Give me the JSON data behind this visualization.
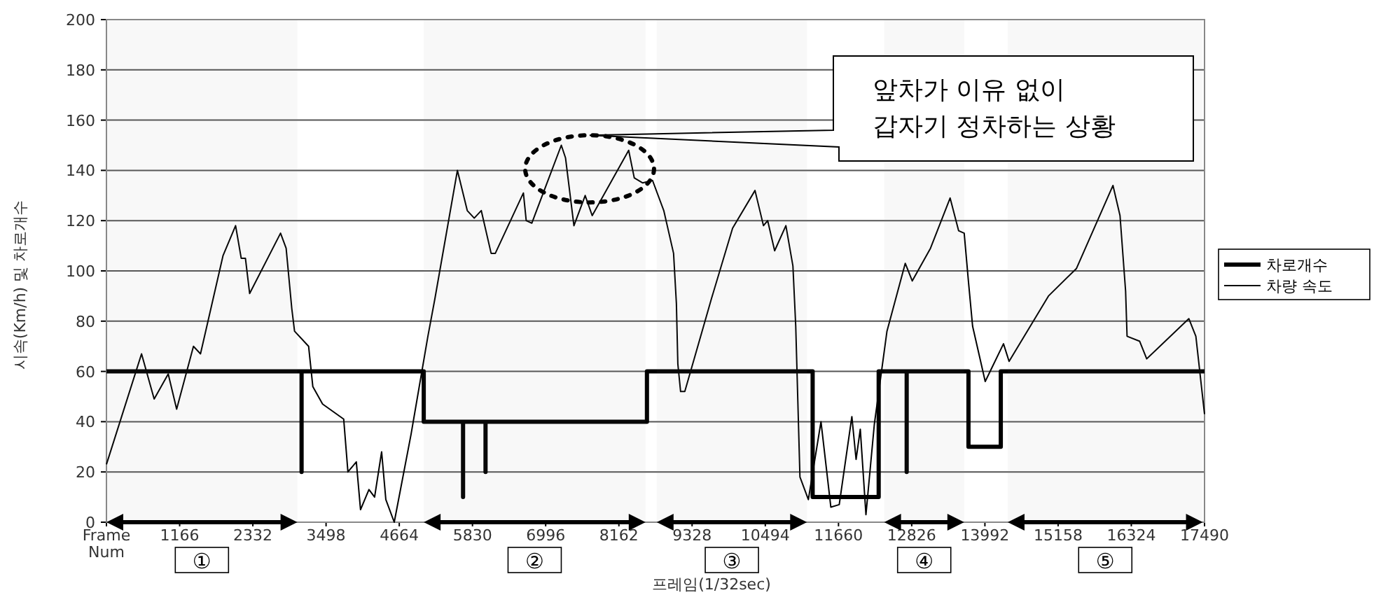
{
  "chart_data": {
    "type": "line",
    "xlabel": "프레임(1/32sec)",
    "ylabel": "시속(Km/h) 및 차로개수",
    "xlim": [
      0,
      17490
    ],
    "xticks": [
      {
        "value": 0,
        "label": "Frame Num"
      },
      1166,
      2332,
      3498,
      4664,
      5830,
      6996,
      8162,
      9328,
      10494,
      11660,
      12826,
      13992,
      15158,
      16324,
      17490
    ],
    "ylim": [
      0,
      200
    ],
    "yticks": [
      0,
      20,
      40,
      60,
      80,
      100,
      120,
      140,
      160,
      180,
      200
    ],
    "grid": "y",
    "legend": "right",
    "series": [
      {
        "name": "차로개수",
        "color": "#000000",
        "x": [
          0,
          3108,
          3108,
          3108,
          5054,
          5054,
          5680,
          5680,
          5680,
          6038,
          6038,
          6038,
          8609,
          8609,
          11248,
          11248,
          12300,
          12300,
          12746,
          12746,
          12746,
          13730,
          13730,
          14245,
          14245,
          17490
        ],
        "values": [
          60,
          60,
          20,
          60,
          60,
          40,
          40,
          10,
          40,
          40,
          20,
          40,
          40,
          60,
          60,
          10,
          10,
          60,
          60,
          20,
          60,
          60,
          30,
          30,
          60,
          60
        ]
      },
      {
        "name": "차량 속도",
        "color": "#000000",
        "x": [
          0,
          559,
          760,
          984,
          1118,
          1386,
          1498,
          1856,
          2057,
          2147,
          2214,
          2281,
          2773,
          2862,
          2952,
          2996,
          3220,
          3287,
          3443,
          3779,
          3846,
          3980,
          4047,
          4181,
          4271,
          4383,
          4450,
          4584,
          4852,
          5120,
          5232,
          5590,
          5747,
          5858,
          5970,
          6127,
          6194,
          6641,
          6686,
          6775,
          7245,
          7312,
          7446,
          7625,
          7737,
          8318,
          8407,
          8542,
          8698,
          8877,
          9033,
          9078,
          9101,
          9145,
          9212,
          9637,
          9973,
          10330,
          10465,
          10532,
          10643,
          10822,
          10934,
          10979,
          11046,
          11180,
          11381,
          11538,
          11672,
          11873,
          11940,
          12007,
          12097,
          12231,
          12432,
          12723,
          12835,
          13125,
          13438,
          13573,
          13662,
          13729,
          13796,
          13997,
          14288,
          14377,
          15004,
          15451,
          16032,
          16144,
          16233,
          16256,
          16457,
          16569,
          17240,
          17352,
          17490
        ],
        "values": [
          23,
          67,
          49,
          59,
          45,
          70,
          67,
          106,
          118,
          105,
          105,
          91,
          115,
          109,
          85,
          76,
          70,
          54,
          47,
          41,
          20,
          24,
          5,
          13,
          10,
          28,
          9,
          0,
          35,
          74,
          89,
          140,
          124,
          121,
          124,
          107,
          107,
          131,
          120,
          119,
          150,
          145,
          118,
          130,
          122,
          148,
          137,
          135,
          136,
          124,
          107,
          87,
          63,
          52,
          52,
          89,
          117,
          132,
          118,
          120,
          108,
          118,
          102,
          78,
          18,
          9,
          40,
          6,
          7,
          42,
          25,
          37,
          3,
          39,
          76,
          103,
          96,
          109,
          129,
          116,
          115,
          96,
          78,
          56,
          71,
          64,
          90,
          101,
          134,
          122,
          92,
          74,
          72,
          65,
          81,
          74,
          43
        ]
      }
    ],
    "bands": [
      {
        "axis": "x",
        "from": 0,
        "to": 3041,
        "label": "①"
      },
      {
        "axis": "x",
        "from": 5054,
        "to": 8587,
        "label": "②"
      },
      {
        "axis": "x",
        "from": 8765,
        "to": 11158,
        "label": "③"
      },
      {
        "axis": "x",
        "from": 12388,
        "to": 13662,
        "label": "④"
      },
      {
        "axis": "x",
        "from": 14355,
        "to": 17463,
        "label": "⑤"
      }
    ],
    "annotations": [
      "앞차가 이유 없이\n갑자기 정차하는 상황"
    ]
  }
}
